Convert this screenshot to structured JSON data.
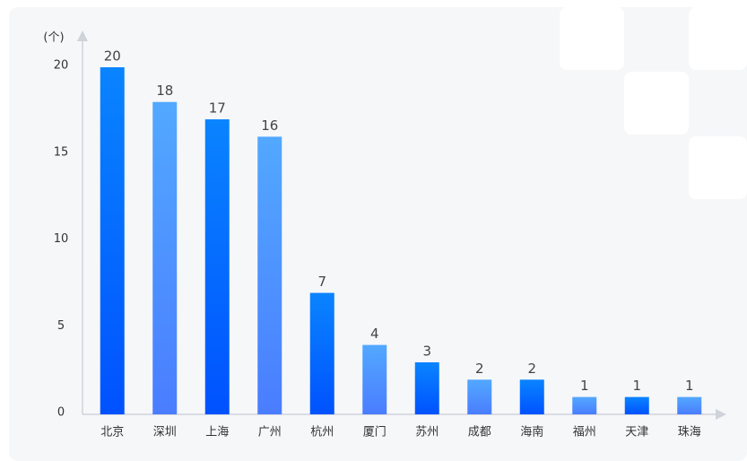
{
  "chart_data": {
    "type": "bar",
    "y_label": "(个)",
    "categories": [
      "北京",
      "深圳",
      "上海",
      "广州",
      "杭州",
      "厦门",
      "苏州",
      "成都",
      "海南",
      "福州",
      "天津",
      "珠海"
    ],
    "values": [
      20,
      18,
      17,
      16,
      7,
      4,
      3,
      2,
      2,
      1,
      1,
      1
    ],
    "colors": [
      [
        "#0a84ff",
        "#0052ff"
      ],
      [
        "#52a8ff",
        "#4a7dff"
      ]
    ],
    "ylim": [
      0,
      20
    ],
    "yticks": [
      0,
      5,
      10,
      15,
      20
    ],
    "grid": false
  }
}
